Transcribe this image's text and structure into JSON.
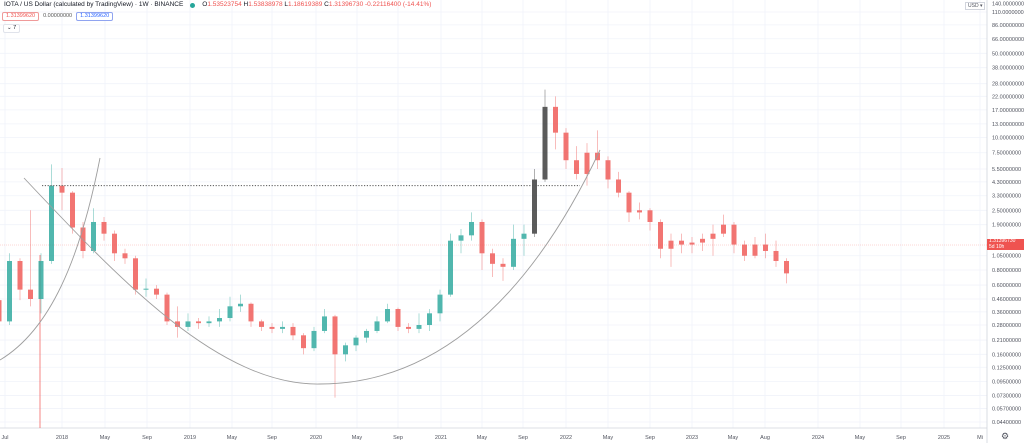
{
  "legend": {
    "title": "IOTA / US Dollar (calculated by TradingView) · 1W · BINANCE",
    "open_label": "O",
    "open": "1.53523754",
    "high_label": "H",
    "high": "1.53838978",
    "low_label": "L",
    "low": "1.18619389",
    "close_label": "C",
    "close": "1.31396730",
    "change": "-0.22116400 (-14.41%)",
    "bid": "1.31399620",
    "spread": "0.00000000",
    "ask": "1.31399620",
    "indicators_toggle": "7"
  },
  "price_axis": {
    "currency": "USD",
    "current_price": "1.31396730",
    "countdown": "5d 10h"
  },
  "colors": {
    "up": "#26a69a",
    "down": "#ef5350",
    "highlight": "#333333",
    "curve": "#9e9e9e"
  },
  "chart_data": {
    "type": "candlestick",
    "symbol": "IOTAUSD",
    "interval": "1W",
    "y_scale": "log",
    "ylim": [
      0.04,
      140
    ],
    "grid": true,
    "y_ticks": [
      "140.00000000",
      "110.00000000",
      "86.00000000",
      "66.00000000",
      "50.00000000",
      "38.00000000",
      "28.00000000",
      "22.00000000",
      "17.00000000",
      "13.00000000",
      "10.00000000",
      "7.50000000",
      "5.50000000",
      "4.30000000",
      "3.30000000",
      "2.50000000",
      "1.90000000",
      "1.05000000",
      "0.80000000",
      "0.60000000",
      "0.46000000",
      "0.36000000",
      "0.28000000",
      "0.21000000",
      "0.16000000",
      "0.12500000",
      "0.09500000",
      "0.07300000",
      "0.05700000",
      "0.04400000"
    ],
    "x_ticks": [
      "Jul",
      "2018",
      "May",
      "Sep",
      "2019",
      "May",
      "Sep",
      "2020",
      "May",
      "Sep",
      "2021",
      "May",
      "Sep",
      "2022",
      "May",
      "Sep",
      "2023",
      "May",
      "Aug",
      "2024",
      "May",
      "Sep",
      "2025",
      "Mi"
    ],
    "candles": [
      {
        "t": "2017-07",
        "o": 0.45,
        "h": 0.6,
        "l": 0.25,
        "c": 0.3
      },
      {
        "t": "2017-08",
        "o": 0.3,
        "h": 1.1,
        "l": 0.28,
        "c": 0.95
      },
      {
        "t": "2017-09",
        "o": 0.95,
        "h": 1.0,
        "l": 0.45,
        "c": 0.55
      },
      {
        "t": "2017-10",
        "o": 0.55,
        "h": 2.5,
        "l": 0.4,
        "c": 0.46
      },
      {
        "t": "2017-11",
        "o": 0.46,
        "h": 1.1,
        "l": 0.35,
        "c": 0.95
      },
      {
        "t": "2017-12",
        "o": 0.95,
        "h": 6.0,
        "l": 0.9,
        "c": 4.0
      },
      {
        "t": "2018-01",
        "o": 4.0,
        "h": 5.6,
        "l": 2.5,
        "c": 3.5
      },
      {
        "t": "2018-02",
        "o": 3.5,
        "h": 3.6,
        "l": 1.6,
        "c": 1.8
      },
      {
        "t": "2018-03",
        "o": 1.8,
        "h": 2.0,
        "l": 1.0,
        "c": 1.15
      },
      {
        "t": "2018-04",
        "o": 1.15,
        "h": 2.6,
        "l": 1.1,
        "c": 2.0
      },
      {
        "t": "2018-05",
        "o": 2.0,
        "h": 2.2,
        "l": 1.4,
        "c": 1.6
      },
      {
        "t": "2018-06",
        "o": 1.6,
        "h": 1.7,
        "l": 0.95,
        "c": 1.1
      },
      {
        "t": "2018-07",
        "o": 1.1,
        "h": 1.2,
        "l": 0.9,
        "c": 1.0
      },
      {
        "t": "2018-08",
        "o": 1.0,
        "h": 1.05,
        "l": 0.5,
        "c": 0.55
      },
      {
        "t": "2018-09",
        "o": 0.55,
        "h": 0.68,
        "l": 0.48,
        "c": 0.56
      },
      {
        "t": "2018-10",
        "o": 0.56,
        "h": 0.6,
        "l": 0.46,
        "c": 0.5
      },
      {
        "t": "2018-11",
        "o": 0.5,
        "h": 0.52,
        "l": 0.28,
        "c": 0.3
      },
      {
        "t": "2018-12",
        "o": 0.3,
        "h": 0.4,
        "l": 0.22,
        "c": 0.27
      },
      {
        "t": "2019-01",
        "o": 0.27,
        "h": 0.35,
        "l": 0.25,
        "c": 0.3
      },
      {
        "t": "2019-02",
        "o": 0.3,
        "h": 0.32,
        "l": 0.26,
        "c": 0.29
      },
      {
        "t": "2019-03",
        "o": 0.29,
        "h": 0.33,
        "l": 0.27,
        "c": 0.3
      },
      {
        "t": "2019-04",
        "o": 0.3,
        "h": 0.38,
        "l": 0.27,
        "c": 0.32
      },
      {
        "t": "2019-05",
        "o": 0.32,
        "h": 0.48,
        "l": 0.3,
        "c": 0.4
      },
      {
        "t": "2019-06",
        "o": 0.4,
        "h": 0.5,
        "l": 0.36,
        "c": 0.42
      },
      {
        "t": "2019-07",
        "o": 0.42,
        "h": 0.43,
        "l": 0.27,
        "c": 0.3
      },
      {
        "t": "2019-08",
        "o": 0.3,
        "h": 0.31,
        "l": 0.25,
        "c": 0.27
      },
      {
        "t": "2019-09",
        "o": 0.27,
        "h": 0.29,
        "l": 0.24,
        "c": 0.26
      },
      {
        "t": "2019-10",
        "o": 0.26,
        "h": 0.3,
        "l": 0.24,
        "c": 0.27
      },
      {
        "t": "2019-11",
        "o": 0.27,
        "h": 0.29,
        "l": 0.21,
        "c": 0.23
      },
      {
        "t": "2019-12",
        "o": 0.23,
        "h": 0.24,
        "l": 0.16,
        "c": 0.18
      },
      {
        "t": "2020-01",
        "o": 0.18,
        "h": 0.27,
        "l": 0.17,
        "c": 0.25
      },
      {
        "t": "2020-02",
        "o": 0.25,
        "h": 0.38,
        "l": 0.24,
        "c": 0.33
      },
      {
        "t": "2020-03",
        "o": 0.33,
        "h": 0.34,
        "l": 0.07,
        "c": 0.16
      },
      {
        "t": "2020-04",
        "o": 0.16,
        "h": 0.2,
        "l": 0.14,
        "c": 0.19
      },
      {
        "t": "2020-05",
        "o": 0.19,
        "h": 0.23,
        "l": 0.17,
        "c": 0.22
      },
      {
        "t": "2020-06",
        "o": 0.22,
        "h": 0.26,
        "l": 0.2,
        "c": 0.25
      },
      {
        "t": "2020-07",
        "o": 0.25,
        "h": 0.33,
        "l": 0.24,
        "c": 0.3
      },
      {
        "t": "2020-08",
        "o": 0.3,
        "h": 0.42,
        "l": 0.29,
        "c": 0.38
      },
      {
        "t": "2020-09",
        "o": 0.38,
        "h": 0.39,
        "l": 0.25,
        "c": 0.27
      },
      {
        "t": "2020-10",
        "o": 0.27,
        "h": 0.29,
        "l": 0.24,
        "c": 0.26
      },
      {
        "t": "2020-11",
        "o": 0.26,
        "h": 0.35,
        "l": 0.24,
        "c": 0.28
      },
      {
        "t": "2020-12",
        "o": 0.28,
        "h": 0.38,
        "l": 0.25,
        "c": 0.35
      },
      {
        "t": "2021-01",
        "o": 0.35,
        "h": 0.55,
        "l": 0.3,
        "c": 0.5
      },
      {
        "t": "2021-02",
        "o": 0.5,
        "h": 1.6,
        "l": 0.48,
        "c": 1.4
      },
      {
        "t": "2021-03",
        "o": 1.4,
        "h": 1.75,
        "l": 1.1,
        "c": 1.55
      },
      {
        "t": "2021-04",
        "o": 1.55,
        "h": 2.4,
        "l": 1.4,
        "c": 2.0
      },
      {
        "t": "2021-05",
        "o": 2.0,
        "h": 2.1,
        "l": 0.8,
        "c": 1.1
      },
      {
        "t": "2021-06",
        "o": 1.1,
        "h": 1.2,
        "l": 0.7,
        "c": 0.9
      },
      {
        "t": "2021-07",
        "o": 0.9,
        "h": 1.0,
        "l": 0.65,
        "c": 0.85
      },
      {
        "t": "2021-08",
        "o": 0.85,
        "h": 1.9,
        "l": 0.8,
        "c": 1.45
      },
      {
        "t": "2021-09",
        "o": 1.45,
        "h": 1.9,
        "l": 1.05,
        "c": 1.6
      },
      {
        "t": "2021-10",
        "o": 1.6,
        "h": 5.5,
        "l": 1.5,
        "c": 4.5,
        "color": "#333333"
      },
      {
        "t": "2021-11",
        "o": 4.5,
        "h": 25.0,
        "l": 4.3,
        "c": 18.0,
        "color": "#333333"
      },
      {
        "t": "2021-12",
        "o": 18.0,
        "h": 22.0,
        "l": 8.0,
        "c": 11.0,
        "color": "#ef5350"
      },
      {
        "t": "2022-01",
        "o": 11.0,
        "h": 12.0,
        "l": 5.5,
        "c": 6.5,
        "color": "#ef5350"
      },
      {
        "t": "2022-02",
        "o": 6.5,
        "h": 8.5,
        "l": 4.5,
        "c": 5.0,
        "color": "#ef5350"
      },
      {
        "t": "2022-03",
        "o": 5.0,
        "h": 9.0,
        "l": 4.0,
        "c": 7.5,
        "color": "#ef5350"
      },
      {
        "t": "2022-04",
        "o": 7.5,
        "h": 11.5,
        "l": 5.5,
        "c": 6.5,
        "color": "#ef5350"
      },
      {
        "t": "2022-05",
        "o": 6.5,
        "h": 7.0,
        "l": 3.8,
        "c": 4.5,
        "color": "#ef5350"
      },
      {
        "t": "2022-06",
        "o": 4.5,
        "h": 5.2,
        "l": 3.2,
        "c": 3.5,
        "color": "#ef5350"
      },
      {
        "t": "2022-07",
        "o": 3.5,
        "h": 3.6,
        "l": 2.0,
        "c": 2.4,
        "color": "#ef5350"
      },
      {
        "t": "2022-08",
        "o": 2.4,
        "h": 2.9,
        "l": 2.1,
        "c": 2.5,
        "color": "#ef5350"
      },
      {
        "t": "2022-09",
        "o": 2.5,
        "h": 2.6,
        "l": 1.7,
        "c": 2.0,
        "color": "#ef5350"
      },
      {
        "t": "2022-10",
        "o": 2.0,
        "h": 2.1,
        "l": 1.0,
        "c": 1.2,
        "color": "#ef5350"
      },
      {
        "t": "2022-11",
        "o": 1.2,
        "h": 1.6,
        "l": 0.85,
        "c": 1.4,
        "color": "#ef5350"
      },
      {
        "t": "2022-12",
        "o": 1.4,
        "h": 1.6,
        "l": 1.1,
        "c": 1.3,
        "color": "#ef5350"
      },
      {
        "t": "2023-01",
        "o": 1.3,
        "h": 1.5,
        "l": 1.1,
        "c": 1.35,
        "color": "#ef5350"
      },
      {
        "t": "2023-02",
        "o": 1.35,
        "h": 1.6,
        "l": 1.15,
        "c": 1.45,
        "color": "#ef5350"
      },
      {
        "t": "2023-03",
        "o": 1.45,
        "h": 1.9,
        "l": 1.05,
        "c": 1.6,
        "color": "#ef5350"
      },
      {
        "t": "2023-04",
        "o": 1.6,
        "h": 2.3,
        "l": 1.5,
        "c": 1.9,
        "color": "#ef5350"
      },
      {
        "t": "2023-05",
        "o": 1.9,
        "h": 2.0,
        "l": 1.1,
        "c": 1.3,
        "color": "#ef5350"
      },
      {
        "t": "2023-06",
        "o": 1.3,
        "h": 1.4,
        "l": 0.95,
        "c": 1.05,
        "color": "#ef5350"
      },
      {
        "t": "2023-07",
        "o": 1.05,
        "h": 1.5,
        "l": 1.0,
        "c": 1.3,
        "color": "#ef5350"
      },
      {
        "t": "2023-08",
        "o": 1.3,
        "h": 1.6,
        "l": 1.0,
        "c": 1.15,
        "color": "#ef5350"
      },
      {
        "t": "2023-09",
        "o": 1.15,
        "h": 1.4,
        "l": 0.85,
        "c": 0.95,
        "color": "#ef5350"
      },
      {
        "t": "2023-10",
        "o": 0.95,
        "h": 1.0,
        "l": 0.62,
        "c": 0.75,
        "color": "#ef5350"
      }
    ],
    "horizontal_level": 4.0
  }
}
